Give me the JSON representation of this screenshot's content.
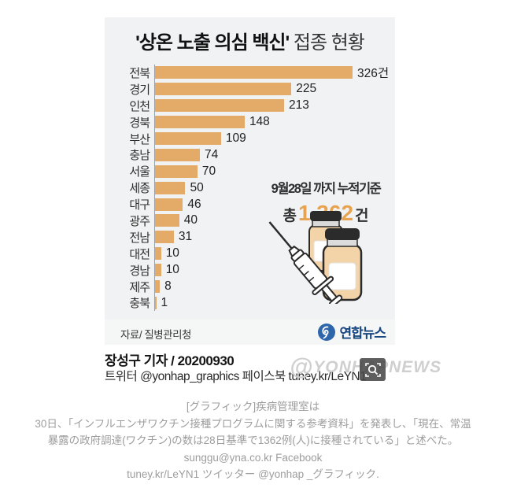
{
  "graphic": {
    "title_strong": "'상온 노출 의심 백신'",
    "title_rest": " 접종 현황",
    "cumulative_note": "9월28일 까지 누적기준",
    "total_prefix": "총 ",
    "total_value": "1,362",
    "total_suffix": "건",
    "source": "자료/ 질병관리청",
    "brand": "연합뉴스",
    "bar_color": "#e4aa67",
    "total_color": "#e8a351",
    "brand_color": "#17457f"
  },
  "chart_data": {
    "type": "bar",
    "orientation": "horizontal",
    "title": "'상온 노출 의심 백신' 접종 현황",
    "categories": [
      "전북",
      "경기",
      "인천",
      "경북",
      "부산",
      "충남",
      "서울",
      "세종",
      "대구",
      "광주",
      "전남",
      "대전",
      "경남",
      "제주",
      "충북"
    ],
    "values": [
      326,
      225,
      213,
      148,
      109,
      74,
      70,
      50,
      46,
      40,
      31,
      10,
      10,
      8,
      1
    ],
    "value_labels": [
      "326건",
      "225",
      "213",
      "148",
      "109",
      "74",
      "70",
      "50",
      "46",
      "40",
      "31",
      "10",
      "10",
      "8",
      "1"
    ],
    "unit": "건",
    "xlim": [
      0,
      326
    ],
    "grid": false,
    "legend": "none",
    "annotation": "9월28일 까지 누적기준 총 1,362건"
  },
  "byline": {
    "reporter": "장성구 기자 / 20200930",
    "social": "트위터 @yonhap_graphics  페이스북 tuney.kr/LeYN1"
  },
  "watermark": {
    "at": "@",
    "text": "YONHAPNEWS"
  },
  "caption": {
    "lines": [
      "[グラフィック]疾病管理室は",
      "30日、「インフルエンザワクチン接種プログラムに関する参考資料」を発表し、「現在、常温",
      "暴露の政府調達(ワクチン)の数は28日基準で1362例(人)に接種されている」と述べた。",
      "sunggu@yna.co.kr Facebook",
      "tuney.kr/LeYN1 ツイッター @yonhap _グラフィック."
    ]
  }
}
